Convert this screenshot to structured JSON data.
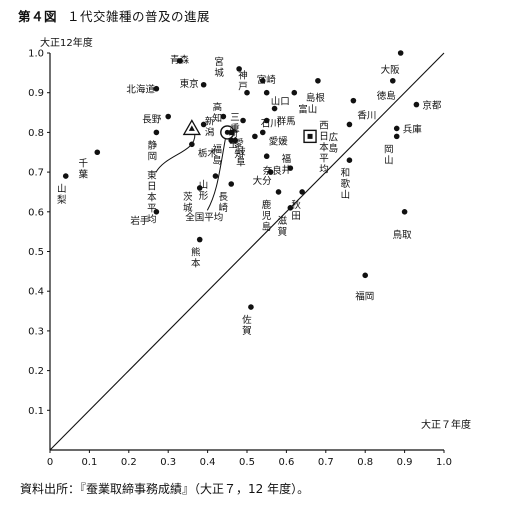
{
  "figure": {
    "number": "第４図",
    "title": "１代交雑種の普及の進展",
    "source": "資料出所：『蚕業取締事務成績』（大正７，12 年度）。"
  },
  "chart_data": {
    "type": "scatter",
    "xlabel": "大正７年度",
    "ylabel": "大正12年度",
    "xlim": [
      0,
      1.0
    ],
    "ylim": [
      0,
      1.0
    ],
    "x_ticks": [
      "0",
      "0.1",
      "0.2",
      "0.3",
      "0.4",
      "0.5",
      "0.6",
      "0.7",
      "0.8",
      "0.9",
      "1.0"
    ],
    "y_ticks": [
      "0.1",
      "0.2",
      "0.3",
      "0.4",
      "0.5",
      "0.6",
      "0.7",
      "0.8",
      "0.9",
      "1.0"
    ],
    "grid": false,
    "diagonal": true,
    "points": [
      {
        "label": "山梨",
        "x": 0.04,
        "y": 0.69
      },
      {
        "label": "千葉",
        "x": 0.12,
        "y": 0.75
      },
      {
        "label": "岩手",
        "x": 0.27,
        "y": 0.6
      },
      {
        "label": "静岡",
        "x": 0.27,
        "y": 0.8
      },
      {
        "label": "北海道",
        "x": 0.27,
        "y": 0.91
      },
      {
        "label": "長野",
        "x": 0.3,
        "y": 0.84
      },
      {
        "label": "青森",
        "x": 0.33,
        "y": 0.98
      },
      {
        "label": "栃木",
        "x": 0.36,
        "y": 0.77
      },
      {
        "label": "東京",
        "x": 0.39,
        "y": 0.92
      },
      {
        "label": "新潟",
        "x": 0.39,
        "y": 0.82
      },
      {
        "label": "茨城",
        "x": 0.38,
        "y": 0.66
      },
      {
        "label": "熊本",
        "x": 0.38,
        "y": 0.53
      },
      {
        "label": "山形",
        "x": 0.42,
        "y": 0.69
      },
      {
        "label": "高知",
        "x": 0.44,
        "y": 0.84
      },
      {
        "label": "宮城",
        "x": 0.48,
        "y": 0.96
      },
      {
        "label": "埼玉",
        "x": 0.46,
        "y": 0.8
      },
      {
        "label": "福島",
        "x": 0.46,
        "y": 0.78
      },
      {
        "label": "愛知",
        "x": 0.47,
        "y": 0.78
      },
      {
        "label": "長崎",
        "x": 0.46,
        "y": 0.67
      },
      {
        "label": "神戸",
        "x": 0.5,
        "y": 0.9
      },
      {
        "label": "三重",
        "x": 0.49,
        "y": 0.83
      },
      {
        "label": "岐阜",
        "x": 0.52,
        "y": 0.79
      },
      {
        "label": "宮崎",
        "x": 0.54,
        "y": 0.93
      },
      {
        "label": "山口",
        "x": 0.55,
        "y": 0.9
      },
      {
        "label": "石川",
        "x": 0.55,
        "y": 0.83
      },
      {
        "label": "愛媛",
        "x": 0.54,
        "y": 0.8
      },
      {
        "label": "奈良",
        "x": 0.55,
        "y": 0.74
      },
      {
        "label": "群馬",
        "x": 0.57,
        "y": 0.86
      },
      {
        "label": "大分",
        "x": 0.56,
        "y": 0.7
      },
      {
        "label": "鹿児島",
        "x": 0.58,
        "y": 0.65
      },
      {
        "label": "滋賀",
        "x": 0.61,
        "y": 0.61
      },
      {
        "label": "富山",
        "x": 0.62,
        "y": 0.9
      },
      {
        "label": "福井",
        "x": 0.61,
        "y": 0.71
      },
      {
        "label": "秋田",
        "x": 0.64,
        "y": 0.65
      },
      {
        "label": "佐賀",
        "x": 0.51,
        "y": 0.36
      },
      {
        "label": "島根",
        "x": 0.68,
        "y": 0.93
      },
      {
        "label": "広島",
        "x": 0.76,
        "y": 0.82
      },
      {
        "label": "香川",
        "x": 0.77,
        "y": 0.88
      },
      {
        "label": "和歌山",
        "x": 0.76,
        "y": 0.73
      },
      {
        "label": "福岡",
        "x": 0.8,
        "y": 0.44
      },
      {
        "label": "大阪",
        "x": 0.89,
        "y": 1.0
      },
      {
        "label": "徳島",
        "x": 0.87,
        "y": 0.93
      },
      {
        "label": "兵庫",
        "x": 0.88,
        "y": 0.81
      },
      {
        "label": "岡山",
        "x": 0.88,
        "y": 0.79
      },
      {
        "label": "鳥取",
        "x": 0.9,
        "y": 0.6
      },
      {
        "label": "京都",
        "x": 0.93,
        "y": 0.87
      }
    ],
    "averages": [
      {
        "label": "東日本平均",
        "x": 0.36,
        "y": 0.81,
        "marker": "triangle"
      },
      {
        "label": "全国平均",
        "x": 0.45,
        "y": 0.8,
        "marker": "circle"
      },
      {
        "label": "西日本平均",
        "x": 0.66,
        "y": 0.79,
        "marker": "square"
      }
    ]
  }
}
